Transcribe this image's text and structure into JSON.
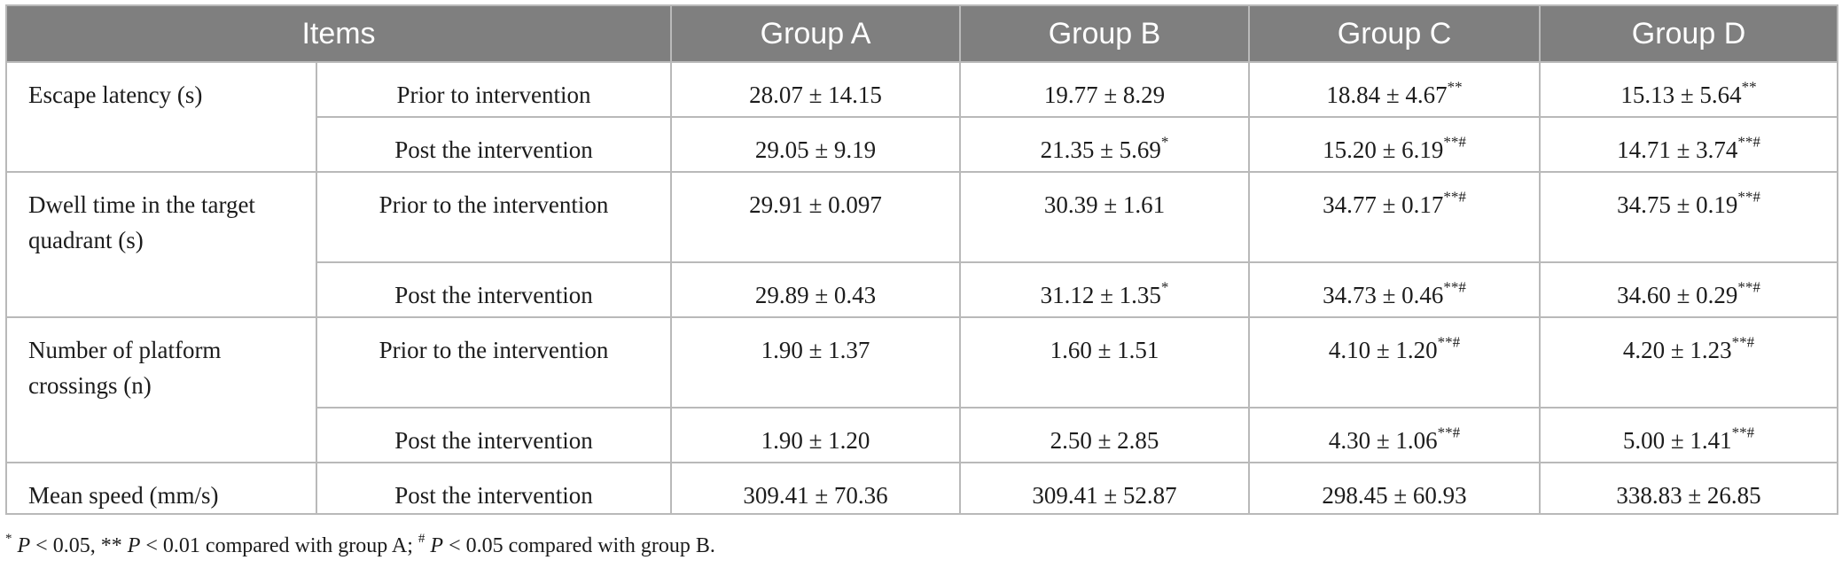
{
  "header": {
    "items": "Items",
    "group_a": "Group A",
    "group_b": "Group B",
    "group_c": "Group C",
    "group_d": "Group D"
  },
  "rows": {
    "escape": {
      "label": "Escape latency (s)",
      "prior": {
        "label": "Prior to intervention",
        "a": "28.07 ± 14.15",
        "b": "19.77 ± 8.29",
        "c": "18.84 ± 4.67",
        "c_sup": "**",
        "d": "15.13 ± 5.64",
        "d_sup": "**"
      },
      "post": {
        "label": "Post the intervention",
        "a": "29.05 ± 9.19",
        "b": "21.35 ± 5.69",
        "b_sup": "*",
        "c": "15.20 ± 6.19",
        "c_sup": "**#",
        "d": "14.71 ± 3.74",
        "d_sup": "**#"
      }
    },
    "dwell": {
      "label_line1": "Dwell time in the target",
      "label_line2": "quadrant (s)",
      "prior": {
        "label": "Prior to the intervention",
        "a": "29.91 ± 0.097",
        "b": "30.39 ± 1.61",
        "c": "34.77 ± 0.17",
        "c_sup": "**#",
        "d": "34.75 ± 0.19",
        "d_sup": "**#"
      },
      "post": {
        "label": "Post the intervention",
        "a": "29.89 ± 0.43",
        "b": "31.12 ± 1.35",
        "b_sup": "*",
        "c": "34.73 ± 0.46",
        "c_sup": "**#",
        "d": "34.60 ± 0.29",
        "d_sup": "**#"
      }
    },
    "crossings": {
      "label_line1": "Number of platform",
      "label_line2": "crossings (n)",
      "prior": {
        "label": "Prior to the intervention",
        "a": "1.90 ± 1.37",
        "b": "1.60 ± 1.51",
        "c": "4.10 ± 1.20",
        "c_sup": "**#",
        "d": "4.20 ± 1.23",
        "d_sup": "**#"
      },
      "post": {
        "label": "Post the intervention",
        "a": "1.90 ± 1.20",
        "b": "2.50 ± 2.85",
        "c": "4.30 ± 1.06",
        "c_sup": "**#",
        "d": "5.00 ± 1.41",
        "d_sup": "**#"
      }
    },
    "speed": {
      "label": "Mean speed (mm/s)",
      "post": {
        "label": "Post the intervention",
        "a": "309.41 ± 70.36",
        "b": "309.41 ± 52.87",
        "c": "298.45 ± 60.93",
        "d": "338.83 ± 26.85"
      }
    }
  },
  "footnote": {
    "s1": "*",
    "p1": "P",
    "t1": " < 0.05, ** ",
    "p2": "P",
    "t2": " < 0.01 compared with group A; ",
    "s2": "#",
    "p3": "P",
    "t3": " < 0.05 compared with group B."
  }
}
